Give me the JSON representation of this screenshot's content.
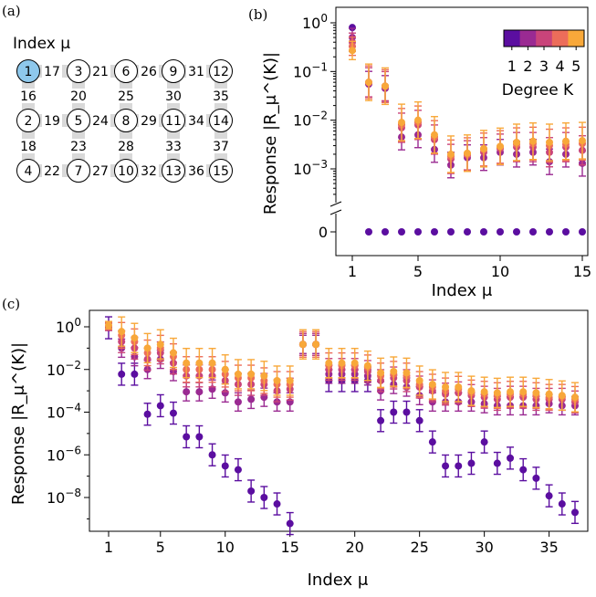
{
  "panels": {
    "a_label": "(a)",
    "b_label": "(b)",
    "c_label": "(c)"
  },
  "lattice": {
    "title": "Index μ",
    "highlight_color": "#8ec8ec",
    "rows": [
      [
        "1",
        "17",
        "3",
        "21",
        "6",
        "26",
        "9",
        "31",
        "12"
      ],
      [
        "16",
        "",
        "20",
        "",
        "25",
        "",
        "30",
        "",
        "35"
      ],
      [
        "2",
        "19",
        "5",
        "24",
        "8",
        "29",
        "11",
        "34",
        "14"
      ],
      [
        "18",
        "",
        "23",
        "",
        "28",
        "",
        "33",
        "",
        "37"
      ],
      [
        "4",
        "22",
        "7",
        "27",
        "10",
        "32",
        "13",
        "36",
        "15"
      ]
    ]
  },
  "legend": {
    "title": "Degree K",
    "labels": [
      "1",
      "2",
      "3",
      "4",
      "5"
    ],
    "colors": [
      "#5b0ea0",
      "#9a2a92",
      "#c9447a",
      "#ec6d5a",
      "#f8a83a"
    ]
  },
  "chart_data": [
    {
      "id": "b",
      "type": "scatter",
      "xlabel": "Index μ",
      "ylabel": "Response |R_μ^(K)|",
      "xticks": [
        "1",
        "5",
        "10",
        "15"
      ],
      "yticks": [
        "10^0",
        "10^-1",
        "10^-2",
        "10^-3",
        "0"
      ],
      "ylim_log": [
        0.0004,
        1.2
      ],
      "x": [
        1,
        2,
        3,
        4,
        5,
        6,
        7,
        8,
        9,
        10,
        11,
        12,
        13,
        14,
        15
      ],
      "series": [
        {
          "name": "1",
          "values": [
            0.8,
            0,
            0,
            0,
            0,
            0,
            0,
            0,
            0,
            0,
            0,
            0,
            0,
            0,
            0
          ]
        },
        {
          "name": "2",
          "values": [
            0.5,
            0.055,
            0.045,
            0.0045,
            0.005,
            0.0025,
            0.0012,
            0.0017,
            0.0017,
            0.0022,
            0.002,
            0.0022,
            0.0014,
            0.002,
            0.0013
          ]
        },
        {
          "name": "3",
          "values": [
            0.4,
            0.06,
            0.05,
            0.007,
            0.008,
            0.004,
            0.0016,
            0.0019,
            0.0022,
            0.0026,
            0.0028,
            0.0028,
            0.0022,
            0.0028,
            0.0024
          ]
        },
        {
          "name": "4",
          "values": [
            0.33,
            0.06,
            0.05,
            0.008,
            0.009,
            0.0045,
            0.0018,
            0.002,
            0.0025,
            0.0028,
            0.0032,
            0.0033,
            0.003,
            0.0032,
            0.0033
          ]
        },
        {
          "name": "5",
          "values": [
            0.27,
            0.06,
            0.05,
            0.009,
            0.01,
            0.005,
            0.002,
            0.0021,
            0.0026,
            0.0029,
            0.0035,
            0.0037,
            0.0035,
            0.0037,
            0.0038
          ]
        }
      ]
    },
    {
      "id": "c",
      "type": "scatter",
      "xlabel": "Index μ",
      "ylabel": "Response |R_μ^(K)|",
      "xticks": [
        "1",
        "5",
        "10",
        "15",
        "20",
        "25",
        "30",
        "35"
      ],
      "yticks": [
        "10^0",
        "10^-2",
        "10^-4",
        "10^-6",
        "10^-8"
      ],
      "ylim_log": [
        5e-10,
        5
      ],
      "x": [
        1,
        2,
        3,
        4,
        5,
        6,
        7,
        8,
        9,
        10,
        11,
        12,
        13,
        14,
        15,
        16,
        17,
        18,
        19,
        20,
        21,
        22,
        23,
        24,
        25,
        26,
        27,
        28,
        29,
        30,
        31,
        32,
        33,
        34,
        35,
        36,
        37
      ],
      "series": [
        {
          "name": "1",
          "values": [
            0.9,
            0.006,
            0.006,
            8e-05,
            0.0002,
            9e-05,
            7e-06,
            7e-06,
            1e-06,
            3e-07,
            2e-07,
            2e-08,
            1e-08,
            5e-09,
            6e-10,
            0.15,
            0.15,
            0.003,
            0.003,
            0.003,
            0.003,
            4e-05,
            0.0001,
            0.0001,
            4e-05,
            4e-06,
            3e-07,
            3e-07,
            4e-07,
            4e-06,
            4e-07,
            7e-07,
            2e-07,
            8e-08,
            1.2e-08,
            5e-09,
            2e-09
          ]
        },
        {
          "name": "2",
          "values": [
            1.0,
            0.1,
            0.04,
            0.01,
            0.03,
            0.008,
            0.0009,
            0.0009,
            0.0012,
            0.0008,
            0.0003,
            0.0004,
            0.0005,
            0.0003,
            0.0003,
            0.15,
            0.15,
            0.006,
            0.006,
            0.006,
            0.005,
            0.001,
            0.002,
            0.0015,
            0.0006,
            0.0003,
            0.0003,
            0.0003,
            0.0003,
            0.00025,
            0.0002,
            0.0002,
            0.0002,
            0.0002,
            0.00025,
            0.0002,
            0.0002
          ]
        },
        {
          "name": "3",
          "values": [
            1.0,
            0.2,
            0.1,
            0.03,
            0.06,
            0.02,
            0.005,
            0.005,
            0.005,
            0.003,
            0.002,
            0.002,
            0.002,
            0.001,
            0.0012,
            0.15,
            0.15,
            0.01,
            0.01,
            0.01,
            0.008,
            0.003,
            0.004,
            0.003,
            0.0015,
            0.001,
            0.0007,
            0.0008,
            0.0006,
            0.0005,
            0.0004,
            0.0005,
            0.0005,
            0.0004,
            0.0004,
            0.0004,
            0.0003
          ]
        },
        {
          "name": "4",
          "values": [
            1.1,
            0.4,
            0.2,
            0.06,
            0.1,
            0.04,
            0.01,
            0.01,
            0.01,
            0.006,
            0.004,
            0.004,
            0.003,
            0.002,
            0.002,
            0.15,
            0.15,
            0.015,
            0.015,
            0.015,
            0.012,
            0.005,
            0.006,
            0.005,
            0.002,
            0.0015,
            0.001,
            0.0012,
            0.0008,
            0.0007,
            0.0006,
            0.0007,
            0.0007,
            0.0006,
            0.0005,
            0.0005,
            0.0004
          ]
        },
        {
          "name": "5",
          "values": [
            1.2,
            0.6,
            0.3,
            0.1,
            0.15,
            0.06,
            0.02,
            0.02,
            0.02,
            0.01,
            0.006,
            0.006,
            0.005,
            0.003,
            0.003,
            0.15,
            0.15,
            0.02,
            0.02,
            0.02,
            0.015,
            0.007,
            0.008,
            0.007,
            0.003,
            0.002,
            0.0015,
            0.0015,
            0.001,
            0.0009,
            0.0008,
            0.0009,
            0.0009,
            0.0008,
            0.0007,
            0.0006,
            0.0005
          ]
        }
      ]
    }
  ]
}
